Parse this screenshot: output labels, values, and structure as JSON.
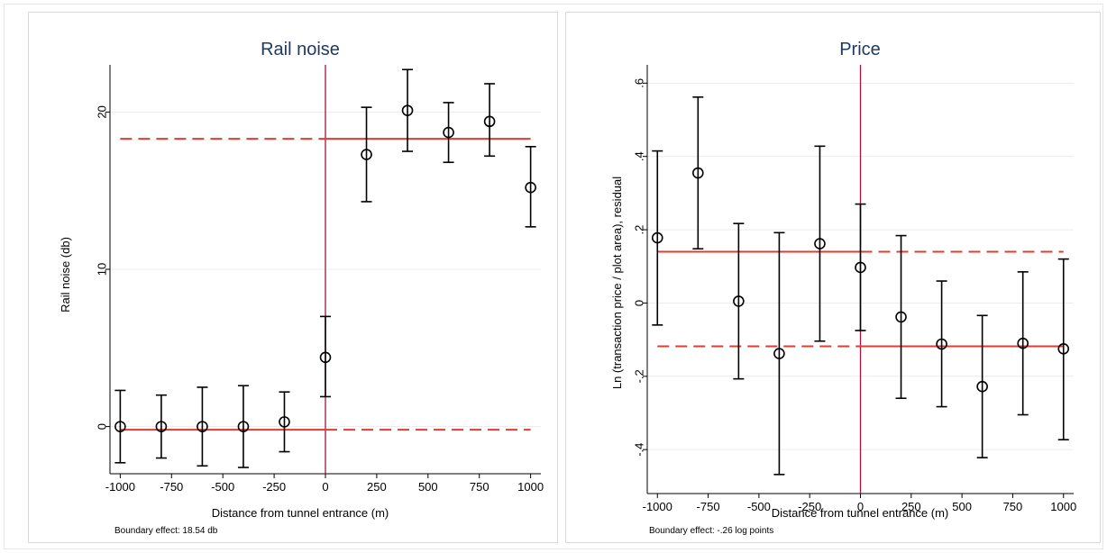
{
  "chart_data": [
    {
      "type": "scatter",
      "title": "Rail noise",
      "xlabel": "Distance from tunnel entrance (m)",
      "ylabel": "Rail noise (db)",
      "note": "Boundary effect: 18.54 db",
      "xlim": [
        -1050,
        1050
      ],
      "ylim": [
        -3,
        23
      ],
      "x_ticks": [
        -1000,
        -750,
        -500,
        -250,
        0,
        250,
        500,
        750,
        1000
      ],
      "x_tick_labels": [
        "-1000",
        "-750",
        "-500",
        "-250",
        "0",
        "250",
        "500",
        "750",
        "1000"
      ],
      "y_ticks": [
        0,
        10,
        20
      ],
      "y_tick_labels": [
        "0",
        "10",
        "20"
      ],
      "grid": true,
      "points": [
        {
          "x": -1000,
          "y": 0.0,
          "lo": -2.3,
          "hi": 2.3
        },
        {
          "x": -800,
          "y": 0.0,
          "lo": -2.0,
          "hi": 2.0
        },
        {
          "x": -600,
          "y": 0.0,
          "lo": -2.5,
          "hi": 2.5
        },
        {
          "x": -400,
          "y": 0.0,
          "lo": -2.6,
          "hi": 2.6
        },
        {
          "x": -200,
          "y": 0.3,
          "lo": -1.6,
          "hi": 2.2
        },
        {
          "x": 0,
          "y": 4.4,
          "lo": 1.9,
          "hi": 7.0
        },
        {
          "x": 200,
          "y": 17.3,
          "lo": 14.3,
          "hi": 20.3
        },
        {
          "x": 400,
          "y": 20.1,
          "lo": 17.5,
          "hi": 22.7
        },
        {
          "x": 600,
          "y": 18.7,
          "lo": 16.8,
          "hi": 20.6
        },
        {
          "x": 800,
          "y": 19.4,
          "lo": 17.2,
          "hi": 21.8
        },
        {
          "x": 1000,
          "y": 15.2,
          "lo": 12.7,
          "hi": 17.8
        }
      ],
      "fit_lines": [
        {
          "from": -1000,
          "to": 0,
          "y": -0.2,
          "style": "solid"
        },
        {
          "from": 0,
          "to": 1000,
          "y": -0.2,
          "style": "dashed"
        },
        {
          "from": -1000,
          "to": 0,
          "y": 18.3,
          "style": "dashed"
        },
        {
          "from": 0,
          "to": 1000,
          "y": 18.3,
          "style": "solid"
        }
      ],
      "vline_x": 0
    },
    {
      "type": "scatter",
      "title": "Price",
      "xlabel": "Distance from tunnel entrance (m)",
      "ylabel": "Ln (transaction price / plot area), residual",
      "note": "Boundary effect: -.26 log points",
      "xlim": [
        -1050,
        1050
      ],
      "ylim": [
        -0.52,
        0.65
      ],
      "x_ticks": [
        -1000,
        -750,
        -500,
        -250,
        0,
        250,
        500,
        750,
        1000
      ],
      "x_tick_labels": [
        "-1000",
        "-750",
        "-500",
        "-250",
        "0",
        "250",
        "500",
        "750",
        "1000"
      ],
      "y_ticks": [
        -0.4,
        -0.2,
        0,
        0.2,
        0.4,
        0.6
      ],
      "y_tick_labels": [
        "-.4",
        "-.2",
        "0",
        ".2",
        ".4",
        ".6"
      ],
      "grid": true,
      "points": [
        {
          "x": -1000,
          "y": 0.178,
          "lo": -0.06,
          "hi": 0.415
        },
        {
          "x": -800,
          "y": 0.355,
          "lo": 0.148,
          "hi": 0.562
        },
        {
          "x": -600,
          "y": 0.005,
          "lo": -0.207,
          "hi": 0.217
        },
        {
          "x": -400,
          "y": -0.138,
          "lo": -0.468,
          "hi": 0.192
        },
        {
          "x": -200,
          "y": 0.162,
          "lo": -0.104,
          "hi": 0.428
        },
        {
          "x": 0,
          "y": 0.097,
          "lo": -0.075,
          "hi": 0.27
        },
        {
          "x": 200,
          "y": -0.038,
          "lo": -0.26,
          "hi": 0.184
        },
        {
          "x": 400,
          "y": -0.112,
          "lo": -0.283,
          "hi": 0.06
        },
        {
          "x": 600,
          "y": -0.228,
          "lo": -0.422,
          "hi": -0.034
        },
        {
          "x": 800,
          "y": -0.11,
          "lo": -0.305,
          "hi": 0.085
        },
        {
          "x": 1000,
          "y": -0.125,
          "lo": -0.373,
          "hi": 0.12
        }
      ],
      "fit_lines": [
        {
          "from": -1000,
          "to": 0,
          "y": 0.14,
          "style": "solid"
        },
        {
          "from": 0,
          "to": 1000,
          "y": 0.14,
          "style": "dashed"
        },
        {
          "from": -1000,
          "to": 0,
          "y": -0.118,
          "style": "dashed"
        },
        {
          "from": 0,
          "to": 1000,
          "y": -0.118,
          "style": "solid"
        }
      ],
      "vline_x": 0
    }
  ]
}
